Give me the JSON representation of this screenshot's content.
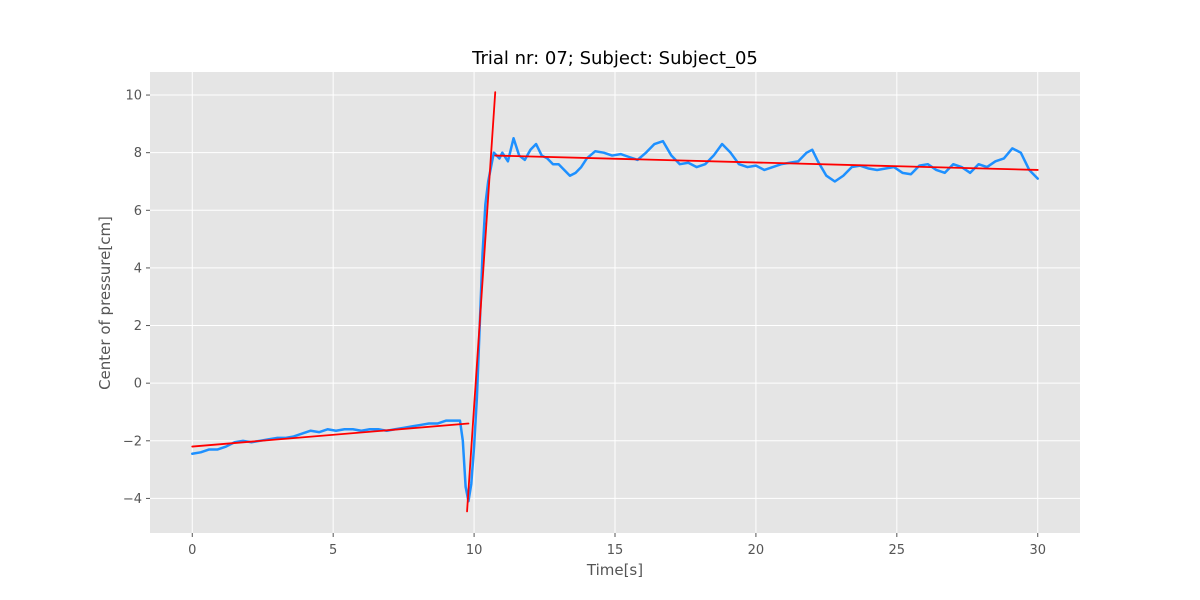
{
  "chart_data": {
    "type": "line",
    "title": "Trial nr: 07;  Subject: Subject_05",
    "xlabel": "Time[s]",
    "ylabel": "Center of pressure[cm]",
    "xlim": [
      -1.5,
      31.5
    ],
    "ylim": [
      -5.2,
      10.8
    ],
    "xticks": [
      0,
      5,
      10,
      15,
      20,
      25,
      30
    ],
    "yticks": [
      -4,
      -2,
      0,
      2,
      4,
      6,
      8,
      10
    ],
    "grid": true,
    "colors": {
      "background": "#E5E5E5",
      "grid": "#FFFFFF",
      "signal": "#1E90FF",
      "fit": "#FF0000"
    },
    "series": [
      {
        "role": "signal",
        "x": [
          0,
          0.3,
          0.6,
          0.9,
          1.2,
          1.5,
          1.8,
          2.1,
          2.4,
          2.7,
          3.0,
          3.3,
          3.6,
          3.9,
          4.2,
          4.5,
          4.8,
          5.1,
          5.4,
          5.7,
          6.0,
          6.3,
          6.6,
          6.9,
          7.2,
          7.5,
          7.8,
          8.1,
          8.4,
          8.7,
          9.0,
          9.3,
          9.5,
          9.6,
          9.7,
          9.8,
          9.9,
          10.0,
          10.1,
          10.2,
          10.3,
          10.4,
          10.5,
          10.6,
          10.7,
          10.8,
          10.9,
          11.0,
          11.2,
          11.4,
          11.6,
          11.8,
          12.0,
          12.2,
          12.4,
          12.6,
          12.8,
          13.0,
          13.2,
          13.4,
          13.6,
          13.8,
          14.0,
          14.3,
          14.6,
          14.9,
          15.2,
          15.5,
          15.8,
          16.1,
          16.4,
          16.7,
          17.0,
          17.3,
          17.6,
          17.9,
          18.2,
          18.5,
          18.8,
          19.1,
          19.4,
          19.7,
          20.0,
          20.3,
          20.6,
          20.9,
          21.2,
          21.5,
          21.8,
          22.0,
          22.2,
          22.5,
          22.8,
          23.1,
          23.4,
          23.7,
          24.0,
          24.3,
          24.6,
          24.9,
          25.2,
          25.5,
          25.8,
          26.1,
          26.4,
          26.7,
          27.0,
          27.3,
          27.6,
          27.9,
          28.2,
          28.5,
          28.8,
          29.1,
          29.4,
          29.7,
          30.0
        ],
        "y": [
          -2.45,
          -2.4,
          -2.3,
          -2.3,
          -2.2,
          -2.05,
          -2.0,
          -2.05,
          -2.0,
          -1.95,
          -1.9,
          -1.9,
          -1.85,
          -1.75,
          -1.65,
          -1.7,
          -1.6,
          -1.65,
          -1.6,
          -1.6,
          -1.65,
          -1.6,
          -1.6,
          -1.65,
          -1.6,
          -1.55,
          -1.5,
          -1.45,
          -1.4,
          -1.4,
          -1.3,
          -1.3,
          -1.3,
          -2.0,
          -3.6,
          -4.1,
          -3.5,
          -2.2,
          -0.5,
          2.0,
          4.5,
          6.2,
          7.0,
          7.5,
          8.0,
          7.9,
          7.8,
          8.0,
          7.7,
          8.5,
          7.9,
          7.75,
          8.1,
          8.3,
          7.9,
          7.8,
          7.6,
          7.6,
          7.4,
          7.2,
          7.3,
          7.5,
          7.8,
          8.05,
          8.0,
          7.9,
          7.95,
          7.85,
          7.75,
          8.0,
          8.3,
          8.4,
          7.9,
          7.6,
          7.65,
          7.5,
          7.6,
          7.9,
          8.3,
          8.0,
          7.6,
          7.5,
          7.55,
          7.4,
          7.5,
          7.6,
          7.65,
          7.7,
          8.0,
          8.1,
          7.7,
          7.2,
          7.0,
          7.2,
          7.5,
          7.55,
          7.45,
          7.4,
          7.45,
          7.5,
          7.3,
          7.25,
          7.55,
          7.6,
          7.4,
          7.3,
          7.6,
          7.5,
          7.3,
          7.6,
          7.5,
          7.7,
          7.8,
          8.15,
          8.0,
          7.4,
          7.1
        ]
      },
      {
        "role": "fit",
        "x": [
          0,
          9.8
        ],
        "y": [
          -2.2,
          -1.4
        ]
      },
      {
        "role": "fit",
        "x": [
          9.75,
          10.75
        ],
        "y": [
          -4.45,
          10.1
        ]
      },
      {
        "role": "fit",
        "x": [
          10.75,
          30
        ],
        "y": [
          7.9,
          7.4
        ]
      }
    ]
  }
}
